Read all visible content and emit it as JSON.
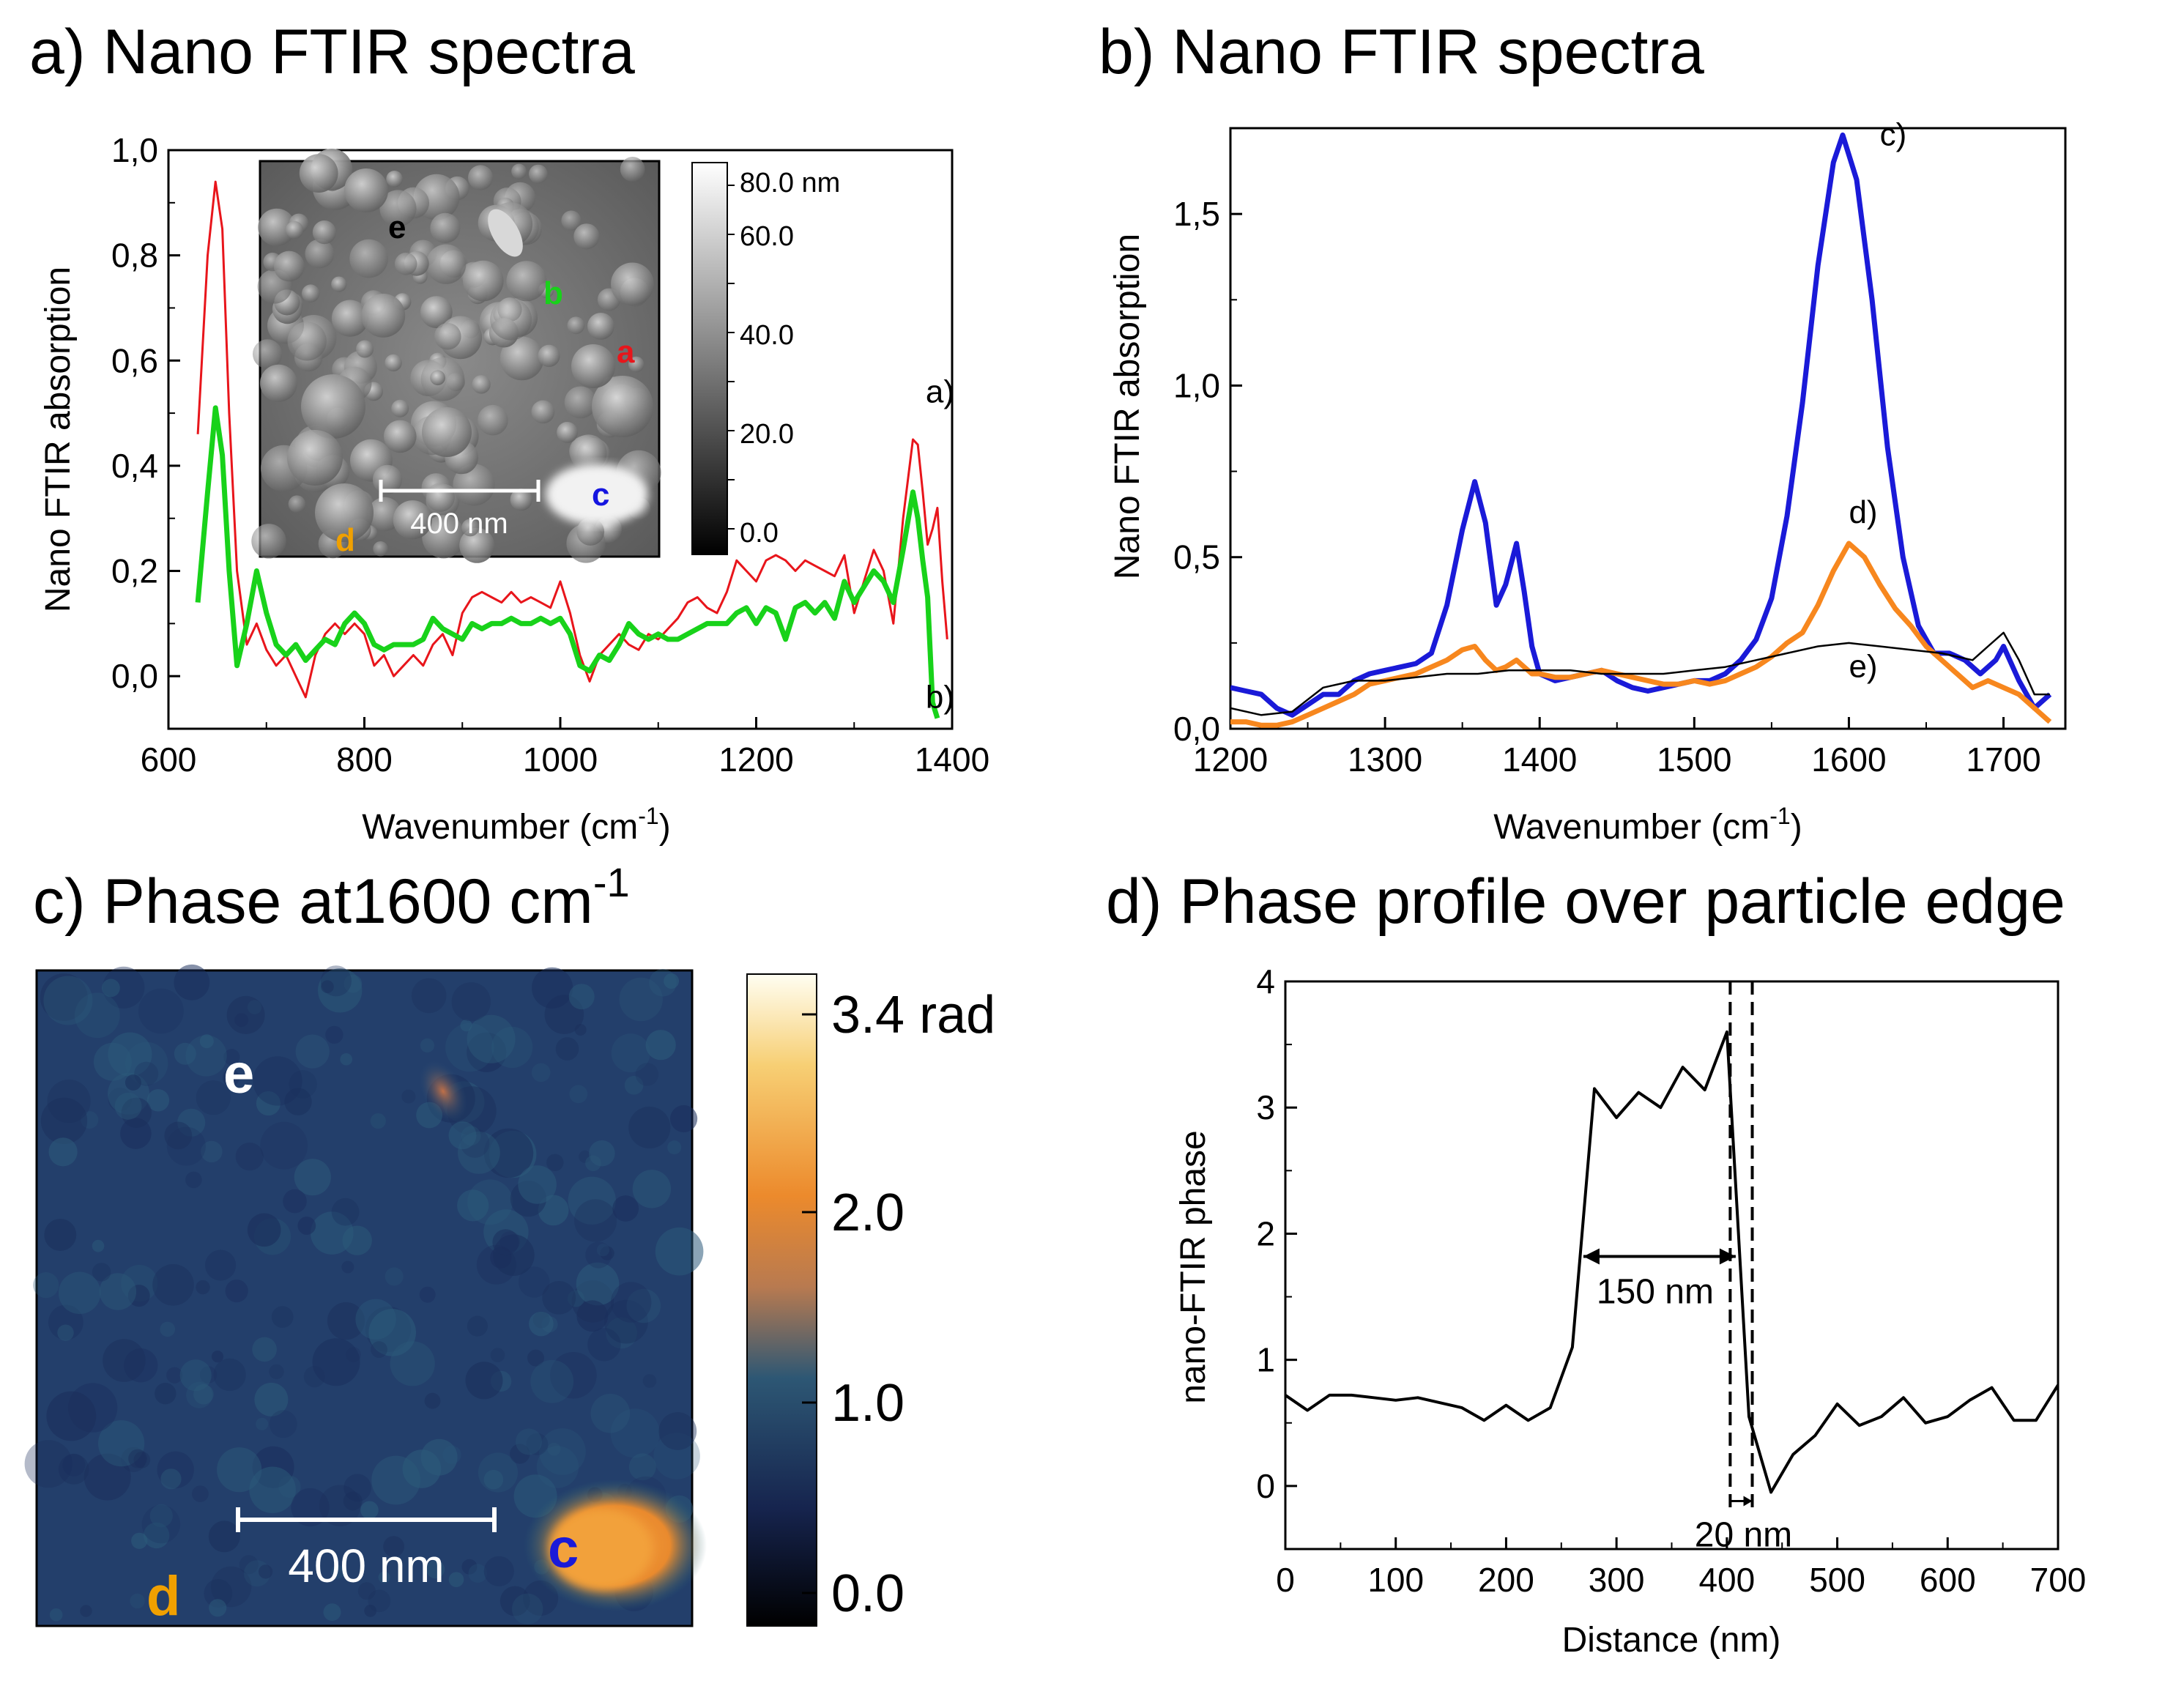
{
  "chart_data": [
    {
      "panel_id": "a",
      "type": "line",
      "title": "a) Nano FTIR spectra",
      "xlabel": "Wavenumber (cm",
      "xlabel_sup": "-1",
      "xlabel_end": ")",
      "ylabel": "Nano FTIR absorption",
      "xlim": [
        600,
        1400
      ],
      "ylim": [
        -0.1,
        1.0
      ],
      "xticks": [
        600,
        800,
        1000,
        1200,
        1400
      ],
      "yticks": [
        {
          "v": 0.0,
          "t": "0,0"
        },
        {
          "v": 0.2,
          "t": "0,2"
        },
        {
          "v": 0.4,
          "t": "0,4"
        },
        {
          "v": 0.6,
          "t": "0,6"
        },
        {
          "v": 0.8,
          "t": "0,8"
        },
        {
          "v": 1.0,
          "t": "1,0"
        }
      ],
      "series": [
        {
          "name": "a)",
          "color": "#e8151b",
          "x": [
            630,
            640,
            648,
            655,
            662,
            670,
            680,
            690,
            700,
            710,
            720,
            730,
            740,
            750,
            760,
            770,
            780,
            790,
            800,
            810,
            820,
            830,
            840,
            850,
            860,
            870,
            880,
            890,
            900,
            910,
            920,
            930,
            940,
            950,
            960,
            970,
            980,
            990,
            1000,
            1010,
            1020,
            1030,
            1040,
            1050,
            1060,
            1070,
            1080,
            1090,
            1100,
            1110,
            1120,
            1130,
            1140,
            1150,
            1160,
            1170,
            1180,
            1190,
            1200,
            1210,
            1220,
            1230,
            1240,
            1250,
            1260,
            1270,
            1280,
            1290,
            1300,
            1310,
            1320,
            1330,
            1340,
            1350,
            1360,
            1365,
            1370,
            1375,
            1380,
            1385,
            1390,
            1395
          ],
          "y": [
            0.46,
            0.8,
            0.94,
            0.85,
            0.5,
            0.2,
            0.06,
            0.1,
            0.05,
            0.02,
            0.04,
            0.0,
            -0.04,
            0.04,
            0.08,
            0.1,
            0.08,
            0.1,
            0.08,
            0.02,
            0.04,
            0.0,
            0.02,
            0.04,
            0.02,
            0.06,
            0.08,
            0.04,
            0.12,
            0.15,
            0.16,
            0.15,
            0.14,
            0.16,
            0.14,
            0.15,
            0.14,
            0.13,
            0.18,
            0.12,
            0.04,
            -0.01,
            0.04,
            0.06,
            0.08,
            0.06,
            0.05,
            0.08,
            0.07,
            0.09,
            0.11,
            0.14,
            0.15,
            0.13,
            0.12,
            0.16,
            0.22,
            0.2,
            0.18,
            0.22,
            0.23,
            0.22,
            0.2,
            0.22,
            0.21,
            0.2,
            0.19,
            0.23,
            0.12,
            0.18,
            0.24,
            0.2,
            0.1,
            0.3,
            0.45,
            0.44,
            0.35,
            0.25,
            0.28,
            0.32,
            0.18,
            0.07
          ]
        },
        {
          "name": "b)",
          "color": "#18d21a",
          "x": [
            630,
            640,
            648,
            655,
            662,
            670,
            680,
            690,
            700,
            710,
            720,
            730,
            740,
            750,
            760,
            770,
            780,
            790,
            800,
            810,
            820,
            830,
            840,
            850,
            860,
            870,
            880,
            890,
            900,
            910,
            920,
            930,
            940,
            950,
            960,
            970,
            980,
            990,
            1000,
            1010,
            1020,
            1030,
            1040,
            1050,
            1060,
            1070,
            1080,
            1090,
            1100,
            1110,
            1120,
            1130,
            1140,
            1150,
            1160,
            1170,
            1180,
            1190,
            1200,
            1210,
            1220,
            1230,
            1240,
            1250,
            1260,
            1270,
            1280,
            1290,
            1300,
            1310,
            1320,
            1330,
            1340,
            1350,
            1360,
            1365,
            1370,
            1375,
            1380,
            1385
          ],
          "y": [
            0.14,
            0.35,
            0.51,
            0.42,
            0.2,
            0.02,
            0.1,
            0.2,
            0.12,
            0.06,
            0.04,
            0.06,
            0.03,
            0.05,
            0.07,
            0.06,
            0.1,
            0.12,
            0.1,
            0.06,
            0.05,
            0.06,
            0.06,
            0.06,
            0.07,
            0.11,
            0.09,
            0.08,
            0.07,
            0.1,
            0.09,
            0.1,
            0.1,
            0.11,
            0.1,
            0.1,
            0.11,
            0.1,
            0.11,
            0.08,
            0.02,
            0.01,
            0.04,
            0.03,
            0.06,
            0.1,
            0.08,
            0.07,
            0.08,
            0.07,
            0.07,
            0.08,
            0.09,
            0.1,
            0.1,
            0.1,
            0.12,
            0.13,
            0.1,
            0.13,
            0.12,
            0.07,
            0.13,
            0.14,
            0.12,
            0.14,
            0.11,
            0.18,
            0.14,
            0.17,
            0.2,
            0.18,
            0.14,
            0.24,
            0.35,
            0.3,
            0.22,
            0.15,
            -0.05,
            -0.08
          ]
        }
      ],
      "curve_labels": [
        {
          "t": "a)",
          "x": 1373,
          "y": 0.52
        },
        {
          "t": "b)",
          "x": 1373,
          "y": -0.06
        }
      ],
      "inset": {
        "labels": [
          {
            "t": "e",
            "color": "#000000"
          },
          {
            "t": "b",
            "color": "#18d21a"
          },
          {
            "t": "a",
            "color": "#e8151b"
          },
          {
            "t": "c",
            "color": "#1515e0"
          },
          {
            "t": "d",
            "color": "#f0a000"
          }
        ],
        "scalebar": "400 nm",
        "colorbar_ticks": [
          "80.0 nm",
          "60.0",
          "40.0",
          "20.0",
          "0.0"
        ]
      }
    },
    {
      "panel_id": "b",
      "type": "line",
      "title": "b) Nano FTIR spectra",
      "xlabel": "Wavenumber (cm",
      "xlabel_sup": "-1",
      "xlabel_end": ")",
      "ylabel": "Nano FTIR absorption",
      "xlim": [
        1200,
        1740
      ],
      "ylim": [
        0.0,
        1.75
      ],
      "xticks": [
        1200,
        1300,
        1400,
        1500,
        1600,
        1700
      ],
      "yticks": [
        {
          "v": 0.0,
          "t": "0,0"
        },
        {
          "v": 0.5,
          "t": "0,5"
        },
        {
          "v": 1.0,
          "t": "1,0"
        },
        {
          "v": 1.5,
          "t": "1,5"
        }
      ],
      "series": [
        {
          "name": "c)",
          "color": "#1a1ad8",
          "x": [
            1200,
            1210,
            1220,
            1230,
            1240,
            1250,
            1260,
            1270,
            1280,
            1290,
            1300,
            1310,
            1320,
            1330,
            1340,
            1350,
            1358,
            1365,
            1372,
            1378,
            1385,
            1390,
            1395,
            1400,
            1410,
            1420,
            1430,
            1440,
            1450,
            1460,
            1470,
            1480,
            1490,
            1500,
            1510,
            1520,
            1530,
            1540,
            1550,
            1560,
            1570,
            1580,
            1590,
            1596,
            1605,
            1615,
            1625,
            1635,
            1645,
            1655,
            1665,
            1675,
            1685,
            1695,
            1700,
            1710,
            1720,
            1730
          ],
          "y": [
            0.12,
            0.11,
            0.1,
            0.06,
            0.04,
            0.07,
            0.1,
            0.1,
            0.14,
            0.16,
            0.17,
            0.18,
            0.19,
            0.22,
            0.36,
            0.58,
            0.72,
            0.6,
            0.36,
            0.42,
            0.54,
            0.4,
            0.24,
            0.16,
            0.14,
            0.15,
            0.16,
            0.17,
            0.14,
            0.12,
            0.11,
            0.12,
            0.13,
            0.14,
            0.14,
            0.16,
            0.2,
            0.26,
            0.38,
            0.62,
            0.95,
            1.35,
            1.65,
            1.73,
            1.6,
            1.25,
            0.82,
            0.5,
            0.3,
            0.22,
            0.22,
            0.2,
            0.16,
            0.2,
            0.24,
            0.14,
            0.06,
            0.1
          ]
        },
        {
          "name": "d)",
          "color": "#f7871e",
          "x": [
            1200,
            1210,
            1220,
            1230,
            1240,
            1250,
            1260,
            1270,
            1280,
            1290,
            1300,
            1310,
            1320,
            1330,
            1340,
            1350,
            1358,
            1365,
            1372,
            1378,
            1385,
            1390,
            1395,
            1400,
            1410,
            1420,
            1430,
            1440,
            1450,
            1460,
            1470,
            1480,
            1490,
            1500,
            1510,
            1520,
            1530,
            1540,
            1550,
            1560,
            1570,
            1580,
            1590,
            1600,
            1610,
            1620,
            1630,
            1640,
            1650,
            1660,
            1670,
            1680,
            1690,
            1700,
            1710,
            1720,
            1730
          ],
          "y": [
            0.02,
            0.02,
            0.01,
            0.01,
            0.02,
            0.04,
            0.06,
            0.08,
            0.1,
            0.13,
            0.14,
            0.15,
            0.16,
            0.18,
            0.2,
            0.23,
            0.24,
            0.2,
            0.17,
            0.18,
            0.2,
            0.18,
            0.16,
            0.16,
            0.15,
            0.15,
            0.16,
            0.17,
            0.16,
            0.15,
            0.14,
            0.13,
            0.13,
            0.14,
            0.13,
            0.14,
            0.16,
            0.18,
            0.21,
            0.25,
            0.28,
            0.36,
            0.46,
            0.54,
            0.5,
            0.42,
            0.35,
            0.3,
            0.24,
            0.2,
            0.16,
            0.12,
            0.14,
            0.12,
            0.1,
            0.06,
            0.02
          ]
        },
        {
          "name": "e)",
          "color": "#000000",
          "x": [
            1200,
            1220,
            1240,
            1260,
            1280,
            1300,
            1320,
            1340,
            1360,
            1380,
            1400,
            1420,
            1440,
            1460,
            1480,
            1500,
            1520,
            1540,
            1560,
            1580,
            1600,
            1620,
            1640,
            1660,
            1680,
            1690,
            1700,
            1710,
            1720,
            1730
          ],
          "y": [
            0.06,
            0.04,
            0.05,
            0.12,
            0.14,
            0.14,
            0.15,
            0.16,
            0.16,
            0.17,
            0.17,
            0.17,
            0.16,
            0.16,
            0.16,
            0.17,
            0.18,
            0.2,
            0.22,
            0.24,
            0.25,
            0.24,
            0.23,
            0.22,
            0.2,
            0.24,
            0.28,
            0.2,
            0.1,
            0.1
          ]
        }
      ],
      "curve_labels": [
        {
          "t": "c)",
          "x": 1620,
          "y": 1.7
        },
        {
          "t": "d)",
          "x": 1600,
          "y": 0.6
        },
        {
          "t": "e)",
          "x": 1600,
          "y": 0.15
        }
      ]
    },
    {
      "panel_id": "c",
      "type": "heatmap",
      "title": "c) Phase at1600 cm",
      "title_sup": "-1",
      "labels": [
        {
          "t": "e",
          "color": "#ffffff"
        },
        {
          "t": "d",
          "color": "#f0a000"
        },
        {
          "t": "c",
          "color": "#1a1ad8"
        }
      ],
      "scalebar": "400 nm",
      "colorbar_ticks": [
        "3.4 rad",
        "2.0",
        "1.0",
        "0.0"
      ]
    },
    {
      "panel_id": "d",
      "type": "line",
      "title": "d) Phase profile over particle edge",
      "xlabel": "Distance (nm)",
      "ylabel": "nano-FTIR phase",
      "xlim": [
        0,
        700
      ],
      "ylim": [
        -0.5,
        4.0
      ],
      "xticks": [
        0,
        100,
        200,
        300,
        400,
        500,
        600,
        700
      ],
      "yticks": [
        {
          "v": 0,
          "t": "0"
        },
        {
          "v": 1,
          "t": "1"
        },
        {
          "v": 2,
          "t": "2"
        },
        {
          "v": 3,
          "t": "3"
        },
        {
          "v": 4,
          "t": "4"
        }
      ],
      "series": [
        {
          "name": "",
          "color": "#000000",
          "x": [
            0,
            20,
            40,
            60,
            80,
            100,
            120,
            140,
            160,
            180,
            200,
            220,
            240,
            260,
            280,
            300,
            320,
            340,
            360,
            380,
            400,
            420,
            440,
            460,
            480,
            500,
            520,
            540,
            560,
            580,
            600,
            620,
            640,
            660,
            680,
            700
          ],
          "y": [
            0.72,
            0.6,
            0.72,
            0.72,
            0.7,
            0.68,
            0.7,
            0.66,
            0.62,
            0.52,
            0.64,
            0.52,
            0.62,
            1.1,
            3.15,
            2.92,
            3.12,
            3.0,
            3.32,
            3.14,
            3.6,
            0.55,
            -0.05,
            0.25,
            0.4,
            0.65,
            0.48,
            0.55,
            0.7,
            0.5,
            0.55,
            0.68,
            0.78,
            0.52,
            0.52,
            0.8
          ]
        }
      ],
      "dashed_lines_x": [
        403,
        423
      ],
      "annotations": [
        {
          "t": "150 nm"
        },
        {
          "t": "20 nm"
        }
      ]
    }
  ]
}
